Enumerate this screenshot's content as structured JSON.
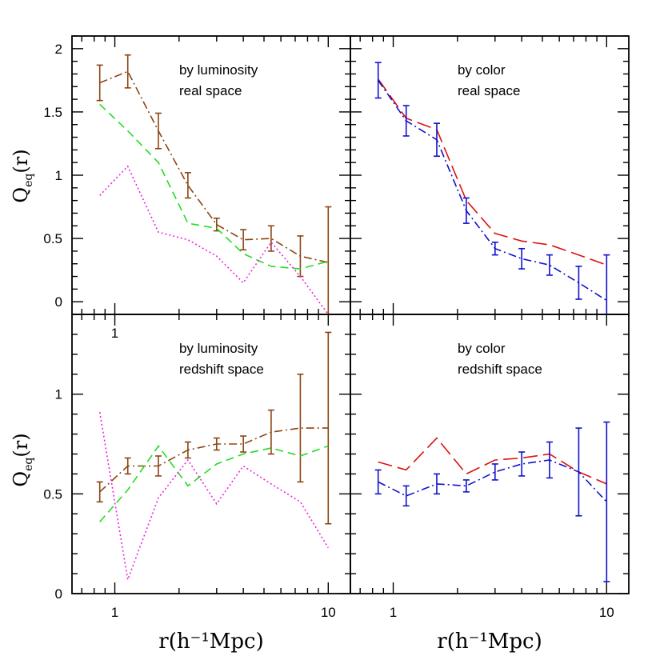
{
  "figure": {
    "xlabel": "r(h⁻¹Mpc)",
    "ylabel": "Q",
    "ylabel_sub": "eq",
    "ylabel_arg": "(r)"
  },
  "chart_data": [
    {
      "type": "line",
      "panel": "top-left",
      "annotation_lines": [
        "by luminosity",
        "real space"
      ],
      "xscale": "log",
      "xlim": [
        0.63,
        12.7
      ],
      "ylim": [
        -0.1,
        2.1
      ],
      "x_ticks": [
        1,
        10
      ],
      "x_tick_labels": [
        "1",
        ""
      ],
      "y_ticks": [
        0,
        0.5,
        1,
        1.5,
        2
      ],
      "y_tick_labels": [
        "0",
        "0.5",
        "1",
        "1.5",
        "2"
      ],
      "series": [
        {
          "style": "dash-dot",
          "color": "#8B4513",
          "x": [
            0.85,
            1.15,
            1.6,
            2.2,
            3.0,
            4.0,
            5.4,
            7.4,
            10.0
          ],
          "y": [
            1.73,
            1.82,
            1.35,
            0.92,
            0.61,
            0.49,
            0.5,
            0.36,
            0.31
          ],
          "err": [
            0.14,
            0.13,
            0.14,
            0.1,
            0.05,
            0.08,
            0.1,
            0.16,
            0.44
          ]
        },
        {
          "style": "dashed",
          "color": "#22dd22",
          "x": [
            0.85,
            1.15,
            1.6,
            2.2,
            3.0,
            4.0,
            5.4,
            7.4,
            10.0
          ],
          "y": [
            1.56,
            1.35,
            1.1,
            0.62,
            0.58,
            0.38,
            0.28,
            0.26,
            0.32
          ]
        },
        {
          "style": "dotted",
          "color": "#ee22dd",
          "x": [
            0.85,
            1.15,
            1.6,
            2.2,
            3.0,
            4.0,
            5.4,
            7.4,
            10.0
          ],
          "y": [
            0.84,
            1.07,
            0.55,
            0.49,
            0.36,
            0.15,
            0.47,
            0.2,
            -0.1
          ]
        }
      ]
    },
    {
      "type": "line",
      "panel": "top-right",
      "annotation_lines": [
        "by color",
        "real space"
      ],
      "xscale": "log",
      "xlim": [
        0.63,
        12.7
      ],
      "ylim": [
        -0.1,
        2.1
      ],
      "x_ticks": [
        1,
        10
      ],
      "x_tick_labels": [
        "",
        ""
      ],
      "series": [
        {
          "style": "long-dash",
          "color": "#dd1111",
          "x": [
            0.85,
            1.15,
            1.6,
            2.2,
            3.0,
            4.0,
            5.4,
            7.4,
            10.0
          ],
          "y": [
            1.76,
            1.45,
            1.36,
            0.8,
            0.54,
            0.48,
            0.45,
            0.37,
            0.29
          ]
        },
        {
          "style": "dash-dot",
          "color": "#1111cc",
          "x": [
            0.85,
            1.15,
            1.6,
            2.2,
            3.0,
            4.0,
            5.4,
            7.4,
            10.0
          ],
          "y": [
            1.75,
            1.43,
            1.28,
            0.72,
            0.42,
            0.34,
            0.29,
            0.15,
            0.01
          ],
          "err": [
            0.14,
            0.12,
            0.13,
            0.1,
            0.05,
            0.08,
            0.08,
            0.13,
            0.36
          ]
        }
      ]
    },
    {
      "type": "line",
      "panel": "bottom-left",
      "annotation_lines": [
        "by luminosity",
        "redshift space"
      ],
      "xscale": "log",
      "xlim": [
        0.63,
        12.7
      ],
      "ylim": [
        0,
        1.4
      ],
      "x_ticks": [
        1,
        10
      ],
      "x_tick_labels": [
        "1",
        "10"
      ],
      "y_ticks": [
        0,
        0.5,
        1
      ],
      "y_tick_labels": [
        "0",
        "0.5",
        "1"
      ],
      "series": [
        {
          "style": "dash-dot",
          "color": "#8B4513",
          "x": [
            0.85,
            1.15,
            1.6,
            2.2,
            3.0,
            4.0,
            5.4,
            7.4,
            10.0
          ],
          "y": [
            0.51,
            0.64,
            0.64,
            0.72,
            0.75,
            0.75,
            0.81,
            0.83,
            0.83
          ],
          "err": [
            0.05,
            0.04,
            0.05,
            0.04,
            0.03,
            0.04,
            0.11,
            0.27,
            0.48
          ]
        },
        {
          "style": "dashed",
          "color": "#22dd22",
          "x": [
            0.85,
            1.15,
            1.6,
            2.2,
            3.0,
            4.0,
            5.4,
            7.4,
            10.0
          ],
          "y": [
            0.36,
            0.52,
            0.74,
            0.54,
            0.65,
            0.7,
            0.73,
            0.69,
            0.74
          ]
        },
        {
          "style": "dotted",
          "color": "#ee22dd",
          "x": [
            0.85,
            1.15,
            1.6,
            2.2,
            3.0,
            4.0,
            5.4,
            7.4,
            10.0
          ],
          "y": [
            0.91,
            0.07,
            0.48,
            0.67,
            0.45,
            0.64,
            0.55,
            0.46,
            0.23
          ]
        }
      ]
    },
    {
      "type": "line",
      "panel": "bottom-right",
      "annotation_lines": [
        "by color",
        "redshift space"
      ],
      "xscale": "log",
      "xlim": [
        0.63,
        12.7
      ],
      "ylim": [
        0,
        1.4
      ],
      "x_ticks": [
        1,
        10
      ],
      "x_tick_labels": [
        "1",
        "10"
      ],
      "series": [
        {
          "style": "long-dash",
          "color": "#dd1111",
          "x": [
            0.85,
            1.15,
            1.6,
            2.2,
            3.0,
            4.0,
            5.4,
            7.4,
            10.0
          ],
          "y": [
            0.66,
            0.62,
            0.78,
            0.6,
            0.67,
            0.68,
            0.7,
            0.61,
            0.55
          ]
        },
        {
          "style": "dash-dot",
          "color": "#1111cc",
          "x": [
            0.85,
            1.15,
            1.6,
            2.2,
            3.0,
            4.0,
            5.4,
            7.4,
            10.0
          ],
          "y": [
            0.56,
            0.49,
            0.55,
            0.54,
            0.61,
            0.65,
            0.67,
            0.61,
            0.46
          ],
          "err": [
            0.06,
            0.05,
            0.05,
            0.03,
            0.04,
            0.06,
            0.09,
            0.22,
            0.4
          ]
        }
      ]
    }
  ]
}
